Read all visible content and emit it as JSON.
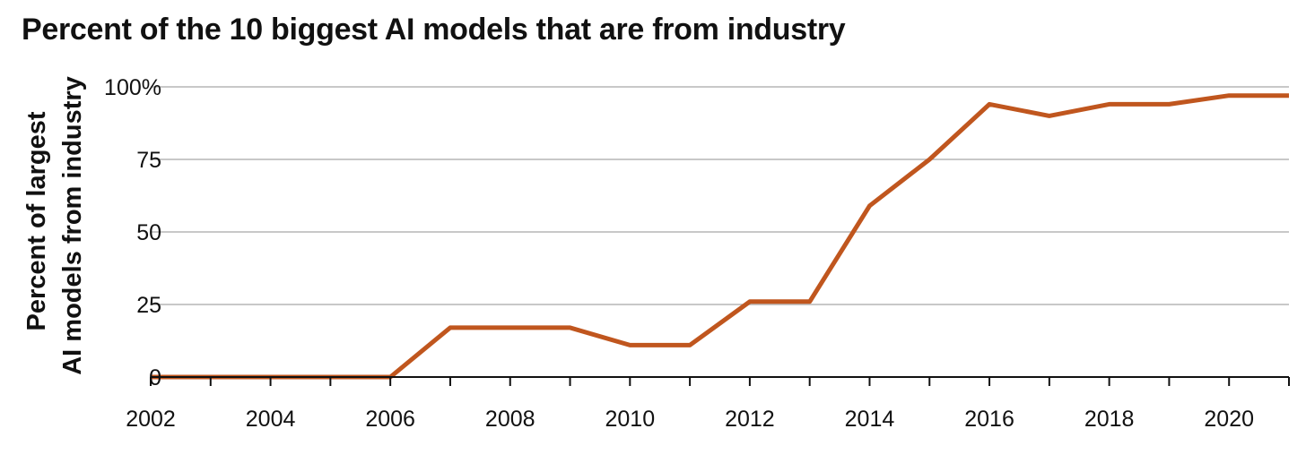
{
  "chart_data": {
    "type": "line",
    "title": "Percent of the 10 biggest AI models that are from industry",
    "ylabel_line1": "Percent of largest",
    "ylabel_line2": "AI models from industry",
    "xlabel": "",
    "x": [
      2002,
      2003,
      2004,
      2005,
      2006,
      2007,
      2008,
      2009,
      2010,
      2011,
      2012,
      2013,
      2014,
      2015,
      2016,
      2017,
      2018,
      2019,
      2020,
      2021
    ],
    "series": [
      {
        "values": [
          0,
          0,
          0,
          0,
          0,
          17,
          17,
          17,
          11,
          11,
          26,
          26,
          59,
          75,
          94,
          90,
          94,
          94,
          97,
          97
        ]
      }
    ],
    "ylim": [
      0,
      100
    ],
    "xlim": [
      2002,
      2021
    ],
    "y_ticks": [
      0,
      25,
      50,
      75,
      100
    ],
    "y_tick_labels": [
      "0",
      "25",
      "50",
      "75",
      "100%"
    ],
    "x_ticks": [
      2002,
      2004,
      2006,
      2008,
      2010,
      2012,
      2014,
      2016,
      2018,
      2020
    ],
    "x_tick_labels": [
      "2002",
      "2004",
      "2006",
      "2008",
      "2010",
      "2012",
      "2014",
      "2016",
      "2018",
      "2020"
    ],
    "grid": "horizontal",
    "line_color": "#c0561e",
    "grid_color": "#a8a8a8",
    "axis_color": "#111111"
  }
}
